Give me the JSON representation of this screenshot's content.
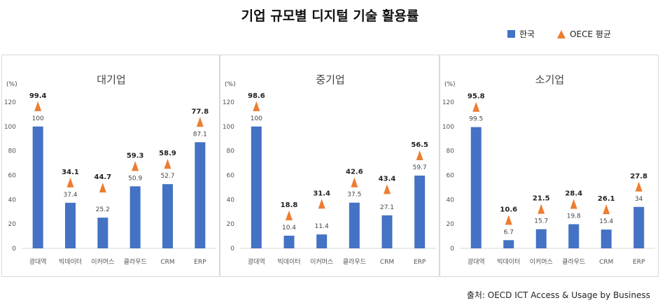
{
  "title": "기업 규모별 디지털 기술 활용률",
  "legend": {
    "korea": "한국",
    "oecd": "OECE 평균"
  },
  "source": "출처: OECD ICT Access & Usage by Business",
  "colors": {
    "korea": "#4472c4",
    "oecd": "#ed7d31"
  },
  "chart_data": [
    {
      "type": "bar",
      "title": "대기업",
      "ylabel": "(%)",
      "ylim": [
        0,
        120
      ],
      "yticks": [
        0,
        20,
        40,
        60,
        80,
        100,
        120
      ],
      "categories": [
        "광대역",
        "빅데이터",
        "이커머스",
        "클라우드",
        "CRM",
        "ERP"
      ],
      "series": [
        {
          "name": "한국",
          "kind": "bar",
          "values": [
            100,
            37.4,
            25.2,
            50.9,
            52.7,
            87.1
          ]
        },
        {
          "name": "OECE 평균",
          "kind": "marker",
          "values": [
            99.4,
            34.1,
            44.7,
            59.3,
            58.9,
            77.8
          ]
        }
      ]
    },
    {
      "type": "bar",
      "title": "중기업",
      "ylabel": "(%)",
      "ylim": [
        0,
        120
      ],
      "yticks": [
        0,
        20,
        40,
        60,
        80,
        100,
        120
      ],
      "categories": [
        "광대역",
        "빅데이터",
        "이커머스",
        "클라우드",
        "CRM",
        "ERP"
      ],
      "series": [
        {
          "name": "한국",
          "kind": "bar",
          "values": [
            100,
            10.4,
            11.4,
            37.5,
            27.1,
            59.7
          ]
        },
        {
          "name": "OECE 평균",
          "kind": "marker",
          "values": [
            98.6,
            18.8,
            31.4,
            42.6,
            43.4,
            56.5
          ]
        }
      ]
    },
    {
      "type": "bar",
      "title": "소기업",
      "ylabel": "(%)",
      "ylim": [
        0,
        120
      ],
      "yticks": [
        0,
        20,
        40,
        60,
        80,
        100,
        120
      ],
      "categories": [
        "광대역",
        "빅데이터",
        "이커머스",
        "클라우드",
        "CRM",
        "ERP"
      ],
      "series": [
        {
          "name": "한국",
          "kind": "bar",
          "values": [
            99.5,
            6.7,
            15.7,
            19.8,
            15.4,
            34
          ]
        },
        {
          "name": "OECE 평균",
          "kind": "marker",
          "values": [
            95.8,
            10.6,
            21.5,
            28.4,
            26.1,
            27.8
          ]
        }
      ]
    }
  ]
}
